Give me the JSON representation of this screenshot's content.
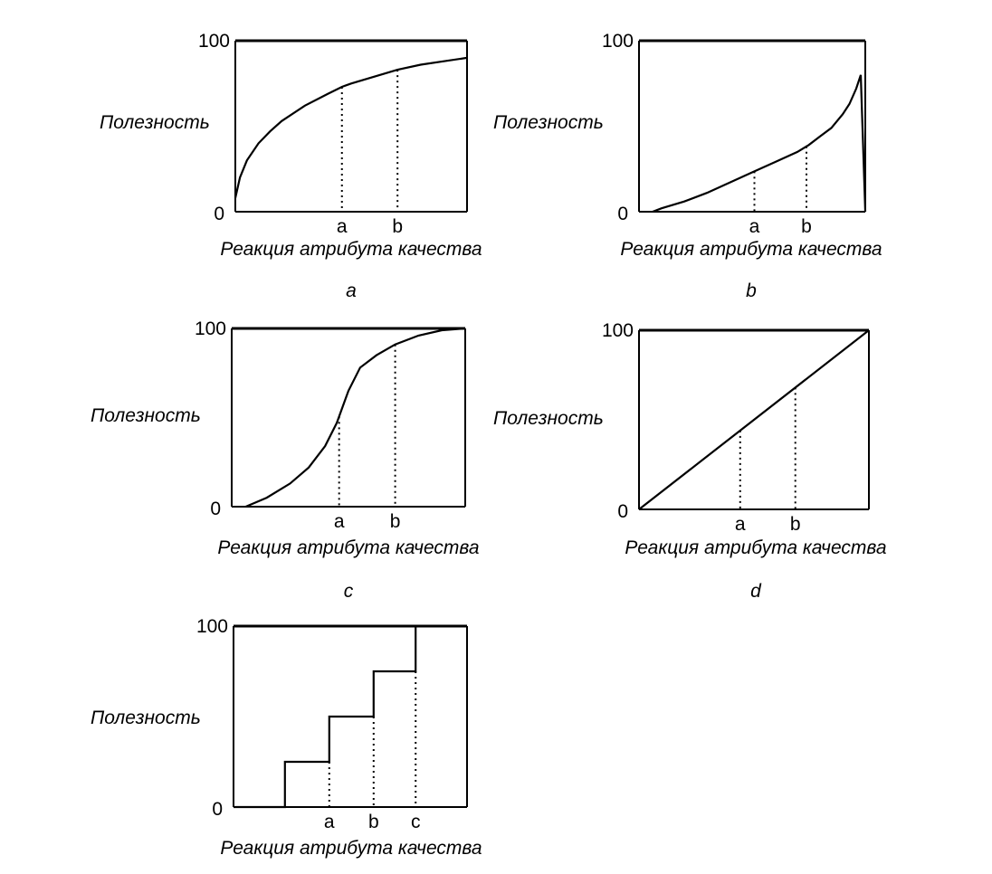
{
  "chart_data": [
    {
      "type": "line",
      "panel_label": "a",
      "ylabel": "Полезность",
      "xlabel": "Реакция атрибута качества",
      "yticks": [
        "0",
        "100"
      ],
      "xticks": [
        "a",
        "b"
      ],
      "ylim": [
        0,
        100
      ],
      "x": [
        0,
        0.02,
        0.05,
        0.1,
        0.15,
        0.2,
        0.3,
        0.4,
        0.46,
        0.5,
        0.6,
        0.7,
        0.8,
        0.9,
        1.0
      ],
      "y": [
        8,
        20,
        30,
        40,
        47,
        53,
        62,
        69,
        73,
        75,
        79,
        83,
        86,
        88,
        90
      ],
      "guides_at": [
        0.46,
        0.7
      ]
    },
    {
      "type": "line",
      "panel_label": "b",
      "ylabel": "Полезность",
      "xlabel": "Реакция атрибута качества",
      "yticks": [
        "0",
        "100"
      ],
      "xticks": [
        "a",
        "b"
      ],
      "ylim": [
        0,
        100
      ],
      "x": [
        0.06,
        0.1,
        0.2,
        0.3,
        0.4,
        0.5,
        0.6,
        0.7,
        0.75,
        0.8,
        0.85,
        0.9,
        0.93,
        0.96,
        0.98,
        1.0
      ],
      "y": [
        0,
        2,
        6,
        11,
        17,
        23,
        29,
        35,
        39,
        44,
        49,
        57,
        63,
        72,
        80,
        0
      ],
      "guides_at": [
        0.51,
        0.74
      ]
    },
    {
      "type": "line",
      "panel_label": "c",
      "ylabel": "Полезность",
      "xlabel": "Реакция атрибута качества",
      "yticks": [
        "0",
        "100"
      ],
      "xticks": [
        "a",
        "b"
      ],
      "ylim": [
        0,
        100
      ],
      "x": [
        0.06,
        0.15,
        0.25,
        0.33,
        0.4,
        0.45,
        0.5,
        0.55,
        0.62,
        0.7,
        0.8,
        0.9,
        1.0
      ],
      "y": [
        0,
        5,
        13,
        22,
        34,
        47,
        65,
        78,
        85,
        91,
        96,
        99,
        100
      ],
      "guides_at": [
        0.46,
        0.7
      ]
    },
    {
      "type": "line",
      "panel_label": "d",
      "ylabel": "Полезность",
      "xlabel": "Реакция атрибута качества",
      "yticks": [
        "0",
        "100"
      ],
      "xticks": [
        "a",
        "b"
      ],
      "ylim": [
        0,
        100
      ],
      "x": [
        0,
        1
      ],
      "y": [
        0,
        100
      ],
      "guides_at": [
        0.44,
        0.68
      ]
    },
    {
      "type": "line",
      "panel_label": "",
      "ylabel": "Полезность",
      "xlabel": "Реакция атрибута качества",
      "yticks": [
        "0",
        "100"
      ],
      "xticks": [
        "a",
        "b",
        "c"
      ],
      "ylim": [
        0,
        100
      ],
      "step": [
        {
          "x": 0,
          "y": 0
        },
        {
          "x": 0.22,
          "y": 0
        },
        {
          "x": 0.22,
          "y": 25
        },
        {
          "x": 0.41,
          "y": 25
        },
        {
          "x": 0.41,
          "y": 50
        },
        {
          "x": 0.6,
          "y": 50
        },
        {
          "x": 0.6,
          "y": 75
        },
        {
          "x": 0.78,
          "y": 75
        },
        {
          "x": 0.78,
          "y": 100
        }
      ],
      "guides_at": [
        0.41,
        0.6,
        0.78
      ]
    }
  ]
}
